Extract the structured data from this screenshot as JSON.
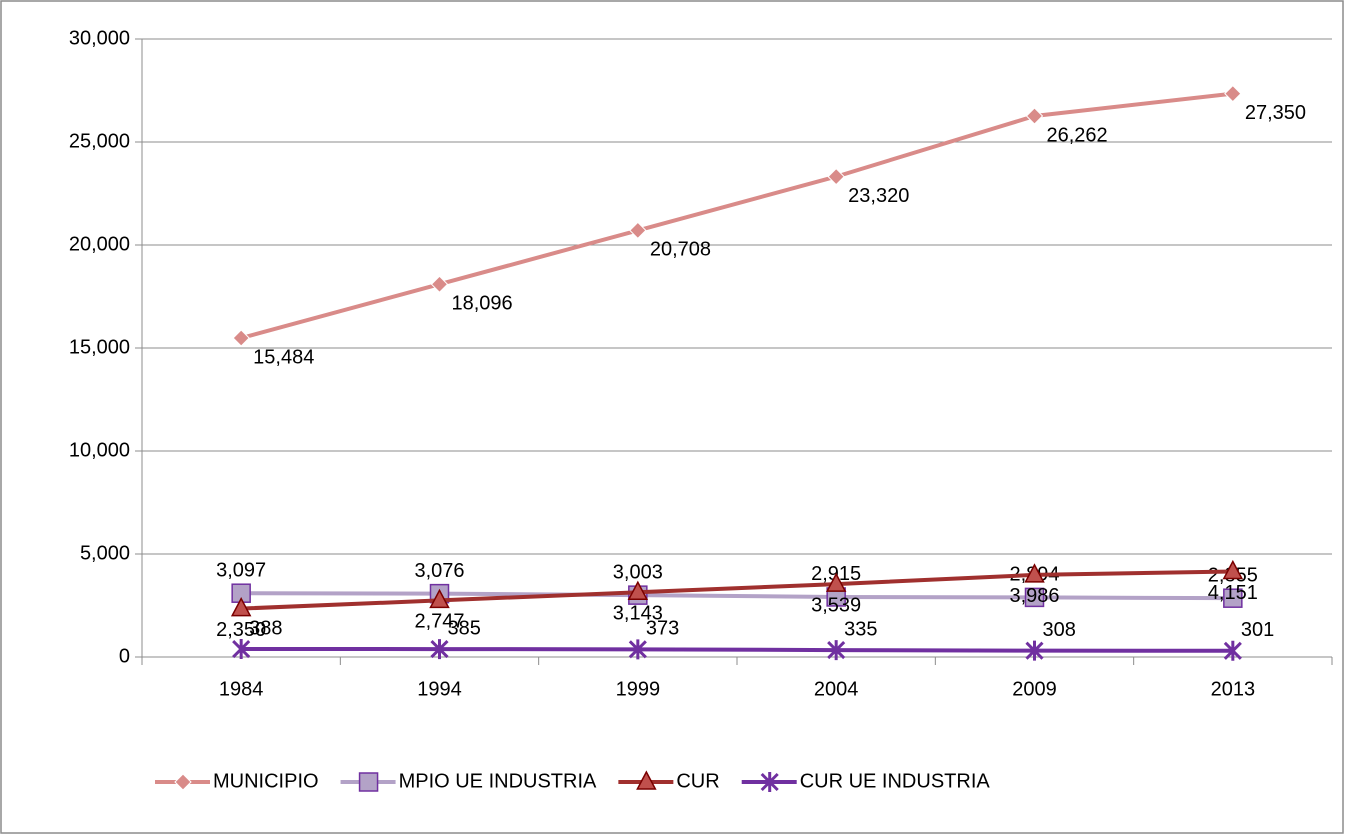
{
  "chart_data": {
    "type": "line",
    "categories": [
      "1984",
      "1994",
      "1999",
      "2004",
      "2009",
      "2013"
    ],
    "series": [
      {
        "name": "MUNICIPIO",
        "color": "#d98b89",
        "marker": "diamond",
        "values": [
          15484,
          18096,
          20708,
          23320,
          26262,
          27350
        ],
        "value_labels": [
          "15,484",
          "18,096",
          "20,708",
          "23,320",
          "26,262",
          "27,350"
        ]
      },
      {
        "name": "MPIO UE INDUSTRIA",
        "color": "#b3a2c7",
        "marker": "square",
        "values": [
          3097,
          3076,
          3003,
          2915,
          2894,
          2855
        ],
        "value_labels": [
          "3,097",
          "3,076",
          "3,003",
          "2,915",
          "2,894",
          "2,855"
        ]
      },
      {
        "name": "CUR",
        "color": "#a0302e",
        "marker": "triangle",
        "values": [
          2350,
          2747,
          3143,
          3539,
          3986,
          4151
        ],
        "value_labels": [
          "2,350",
          "2,747",
          "3,143",
          "3,539",
          "3,986",
          "4,151"
        ]
      },
      {
        "name": "CUR UE INDUSTRIA",
        "color": "#7030a0",
        "marker": "star",
        "values": [
          388,
          385,
          373,
          335,
          308,
          301
        ],
        "value_labels": [
          "388",
          "385",
          "373",
          "335",
          "308",
          "301"
        ]
      }
    ],
    "ylim": [
      0,
      30000
    ],
    "yticks": [
      0,
      {
        "value": 5000,
        "label": "5,000"
      },
      {
        "value": 10000,
        "label": "10,000"
      },
      {
        "value": 15000,
        "label": "15,000"
      },
      {
        "value": 20000,
        "label": "20,000"
      },
      {
        "value": 25000,
        "label": "25,000"
      },
      {
        "value": 30000,
        "label": "30,000"
      }
    ],
    "grid": true,
    "legend": "bottom"
  }
}
